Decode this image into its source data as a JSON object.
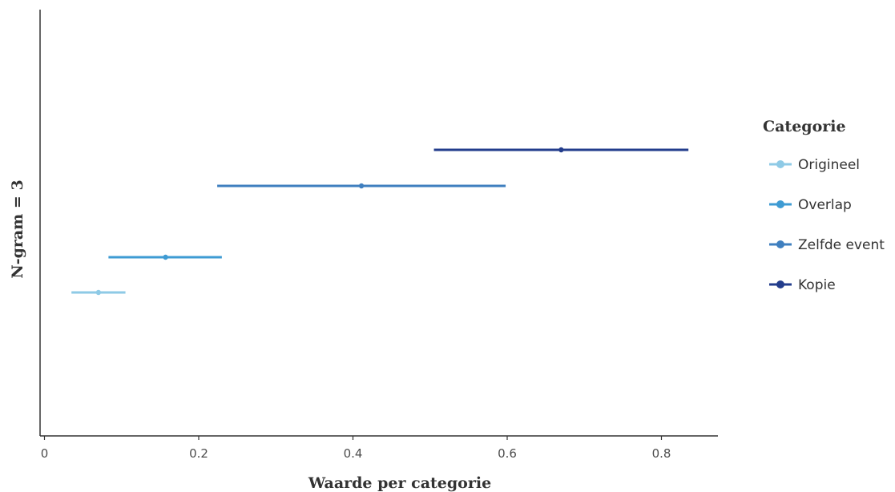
{
  "chart_data": {
    "type": "interval",
    "xlabel": "Waarde per categorie",
    "ylabel": "N-gram = 3",
    "xlim": [
      -0.01,
      0.875
    ],
    "x_ticks": [
      "0",
      "0.2",
      "0.4",
      "0.6",
      "0.8"
    ],
    "grid": false,
    "legend_title": "Categorie",
    "legend_position": "right",
    "series": [
      {
        "name": "Origineel",
        "color": "#8ecae6",
        "low": 0.035,
        "mid": 0.07,
        "high": 0.105
      },
      {
        "name": "Overlap",
        "color": "#3e9bd3",
        "low": 0.083,
        "mid": 0.157,
        "high": 0.23
      },
      {
        "name": "Zelfde event",
        "color": "#3f7fbf",
        "low": 0.224,
        "mid": 0.411,
        "high": 0.598
      },
      {
        "name": "Kopie",
        "color": "#233d8c",
        "low": 0.505,
        "mid": 0.67,
        "high": 0.835
      }
    ]
  }
}
